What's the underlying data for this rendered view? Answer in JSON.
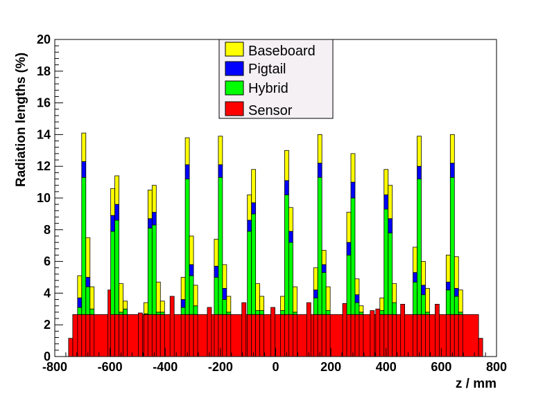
{
  "chart_data": {
    "type": "bar",
    "stacked": true,
    "xlabel": "z / mm",
    "ylabel": "Radiation lengths (%)",
    "xlim": [
      -800,
      800
    ],
    "ylim": [
      0,
      20
    ],
    "x_ticks": [
      -800,
      -600,
      -400,
      -200,
      0,
      200,
      400,
      600,
      800
    ],
    "y_ticks": [
      0,
      2,
      4,
      6,
      8,
      10,
      12,
      14,
      16,
      18,
      20
    ],
    "grid": false,
    "legend_position": "top-center",
    "legend": [
      "Baseboard",
      "Pigtail",
      "Hybrid",
      "Sensor"
    ],
    "colors": {
      "Baseboard": "#ffff00",
      "Pigtail": "#0000ff",
      "Hybrid": "#00ff00",
      "Sensor": "#ff0000"
    },
    "sensor_baseline": 2.65,
    "sensor_edges": [
      {
        "x": [
          -750,
          -735
        ],
        "value": 1.15
      },
      {
        "x": [
          735,
          750
        ],
        "value": 1.15
      }
    ],
    "sensor_spikes": [
      {
        "x": -600,
        "value": 4.2
      },
      {
        "x": -545,
        "value": 3.0
      },
      {
        "x": -490,
        "value": 2.75
      },
      {
        "x": -375,
        "value": 3.8
      },
      {
        "x": -240,
        "value": 3.1
      },
      {
        "x": -115,
        "value": 3.4
      },
      {
        "x": -10,
        "value": 3.1
      },
      {
        "x": 120,
        "value": 3.4
      },
      {
        "x": 250,
        "value": 3.35
      },
      {
        "x": 350,
        "value": 2.9
      },
      {
        "x": 370,
        "value": 3.0
      },
      {
        "x": 390,
        "value": 3.1
      },
      {
        "x": 460,
        "value": 3.3
      },
      {
        "x": 510,
        "value": 3.5
      },
      {
        "x": 585,
        "value": 3.3
      }
    ],
    "module_bins": [
      {
        "x": -710,
        "hybrid": 3.1,
        "pigtail": 3.7,
        "baseboard": 5.1
      },
      {
        "x": -695,
        "hybrid": 11.3,
        "pigtail": 12.3,
        "baseboard": 14.1
      },
      {
        "x": -680,
        "hybrid": 4.4,
        "pigtail": 5.0,
        "baseboard": 7.5
      },
      {
        "x": -665,
        "hybrid": 3.0,
        "pigtail": 3.0,
        "baseboard": 4.4
      },
      {
        "x": -590,
        "hybrid": 7.9,
        "pigtail": 8.9,
        "baseboard": 10.6
      },
      {
        "x": -575,
        "hybrid": 8.6,
        "pigtail": 9.6,
        "baseboard": 11.4
      },
      {
        "x": -560,
        "hybrid": 2.8,
        "pigtail": 2.8,
        "baseboard": 4.6
      },
      {
        "x": -545,
        "hybrid": 3.0,
        "pigtail": 3.0,
        "baseboard": 3.5
      },
      {
        "x": -470,
        "hybrid": 2.7,
        "pigtail": 2.7,
        "baseboard": 3.4
      },
      {
        "x": -455,
        "hybrid": 8.1,
        "pigtail": 8.7,
        "baseboard": 10.5
      },
      {
        "x": -440,
        "hybrid": 8.3,
        "pigtail": 9.1,
        "baseboard": 10.8
      },
      {
        "x": -425,
        "hybrid": 2.8,
        "pigtail": 2.8,
        "baseboard": 4.7
      },
      {
        "x": -410,
        "hybrid": 2.8,
        "pigtail": 2.8,
        "baseboard": 3.5
      },
      {
        "x": -335,
        "hybrid": 3.1,
        "pigtail": 3.6,
        "baseboard": 5.0
      },
      {
        "x": -320,
        "hybrid": 11.2,
        "pigtail": 12.1,
        "baseboard": 13.8
      },
      {
        "x": -305,
        "hybrid": 5.1,
        "pigtail": 5.8,
        "baseboard": 7.6
      },
      {
        "x": -290,
        "hybrid": 3.2,
        "pigtail": 3.2,
        "baseboard": 4.5
      },
      {
        "x": -215,
        "hybrid": 5.0,
        "pigtail": 5.7,
        "baseboard": 7.4
      },
      {
        "x": -200,
        "hybrid": 11.3,
        "pigtail": 12.1,
        "baseboard": 13.9
      },
      {
        "x": -185,
        "hybrid": 3.6,
        "pigtail": 4.3,
        "baseboard": 5.8
      },
      {
        "x": -170,
        "hybrid": 2.8,
        "pigtail": 2.8,
        "baseboard": 3.8
      },
      {
        "x": -95,
        "hybrid": 7.9,
        "pigtail": 8.6,
        "baseboard": 10.2
      },
      {
        "x": -80,
        "hybrid": 9.0,
        "pigtail": 9.7,
        "baseboard": 11.8
      },
      {
        "x": -65,
        "hybrid": 2.9,
        "pigtail": 2.9,
        "baseboard": 4.6
      },
      {
        "x": -50,
        "hybrid": 2.9,
        "pigtail": 2.9,
        "baseboard": 3.8
      },
      {
        "x": 25,
        "hybrid": 2.9,
        "pigtail": 2.9,
        "baseboard": 3.8
      },
      {
        "x": 40,
        "hybrid": 10.2,
        "pigtail": 11.1,
        "baseboard": 13.0
      },
      {
        "x": 55,
        "hybrid": 7.2,
        "pigtail": 7.9,
        "baseboard": 9.4
      },
      {
        "x": 70,
        "hybrid": 2.8,
        "pigtail": 2.8,
        "baseboard": 4.4
      },
      {
        "x": 145,
        "hybrid": 3.7,
        "pigtail": 4.2,
        "baseboard": 5.6
      },
      {
        "x": 160,
        "hybrid": 11.3,
        "pigtail": 12.2,
        "baseboard": 14.0
      },
      {
        "x": 175,
        "hybrid": 5.3,
        "pigtail": 5.8,
        "baseboard": 6.7
      },
      {
        "x": 190,
        "hybrid": 2.9,
        "pigtail": 2.9,
        "baseboard": 4.4
      },
      {
        "x": 265,
        "hybrid": 6.4,
        "pigtail": 7.2,
        "baseboard": 9.1
      },
      {
        "x": 280,
        "hybrid": 10.0,
        "pigtail": 11.0,
        "baseboard": 12.8
      },
      {
        "x": 295,
        "hybrid": 3.4,
        "pigtail": 3.9,
        "baseboard": 4.9
      },
      {
        "x": 310,
        "hybrid": 2.8,
        "pigtail": 2.8,
        "baseboard": 3.2
      },
      {
        "x": 385,
        "hybrid": 2.9,
        "pigtail": 2.9,
        "baseboard": 3.7
      },
      {
        "x": 400,
        "hybrid": 9.3,
        "pigtail": 10.2,
        "baseboard": 11.8
      },
      {
        "x": 415,
        "hybrid": 7.8,
        "pigtail": 8.7,
        "baseboard": 10.8
      },
      {
        "x": 430,
        "hybrid": 3.4,
        "pigtail": 3.4,
        "baseboard": 4.6
      },
      {
        "x": 505,
        "hybrid": 4.7,
        "pigtail": 5.3,
        "baseboard": 6.9
      },
      {
        "x": 520,
        "hybrid": 11.2,
        "pigtail": 12.0,
        "baseboard": 13.9
      },
      {
        "x": 535,
        "hybrid": 3.9,
        "pigtail": 4.5,
        "baseboard": 6.0
      },
      {
        "x": 550,
        "hybrid": 2.8,
        "pigtail": 2.8,
        "baseboard": 4.3
      },
      {
        "x": 625,
        "hybrid": 4.2,
        "pigtail": 4.7,
        "baseboard": 6.4
      },
      {
        "x": 640,
        "hybrid": 11.3,
        "pigtail": 12.2,
        "baseboard": 14.0
      },
      {
        "x": 655,
        "hybrid": 3.8,
        "pigtail": 4.3,
        "baseboard": 6.3
      },
      {
        "x": 670,
        "hybrid": 2.8,
        "pigtail": 2.8,
        "baseboard": 4.2
      }
    ]
  }
}
